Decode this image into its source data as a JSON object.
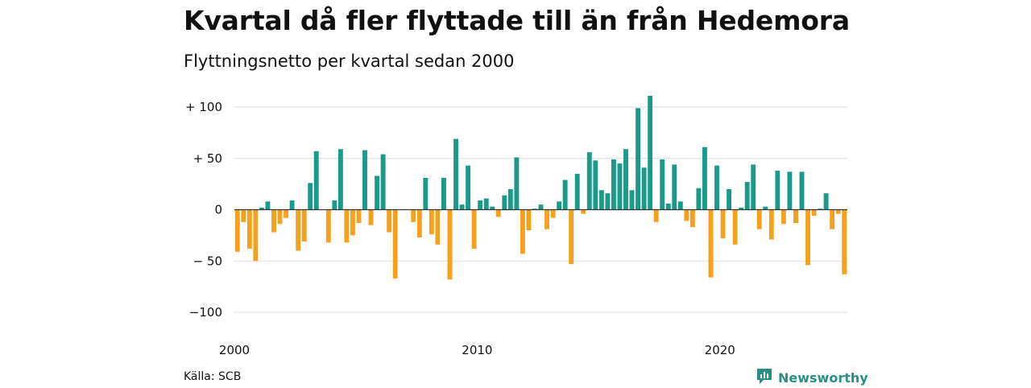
{
  "header": {
    "title": "Kvartal då fler flyttade till än från Hedemora",
    "subtitle": "Flyttningsnetto per kvartal sedan 2000"
  },
  "footer": {
    "source": "Källa: SCB",
    "brand": "Newsworthy",
    "brand_icon": "newsworthy-logo-icon"
  },
  "colors": {
    "positive": "#1a9a8a",
    "negative": "#f5a11d",
    "grid": "#dddddd",
    "zero_line": "#333333",
    "brand": "#2a8e86"
  },
  "chart_data": {
    "type": "bar",
    "title": "Kvartal då fler flyttade till än från Hedemora",
    "subtitle": "Flyttningsnetto per kvartal sedan 2000",
    "xlabel": "",
    "ylabel": "",
    "ylim": [
      -110,
      115
    ],
    "yticks": [
      100,
      50,
      0,
      -50,
      -100
    ],
    "ytick_labels": [
      "+ 100",
      "+  50",
      "0",
      "− 50",
      "−100"
    ],
    "xticks": [
      "2000",
      "2010",
      "2020"
    ],
    "grid": true,
    "legend": "none",
    "start": "2000 Q1",
    "frequency": "quarter",
    "values": [
      -41,
      -12,
      -38,
      -50,
      2,
      8,
      -22,
      -14,
      -8,
      9,
      -40,
      -31,
      26,
      57,
      0,
      -32,
      9,
      59,
      -32,
      -25,
      -13,
      58,
      -15,
      33,
      54,
      -22,
      -67,
      0,
      0,
      -12,
      -27,
      31,
      -24,
      -34,
      31,
      -68,
      69,
      5,
      43,
      -38,
      9,
      11,
      3,
      -7,
      14,
      20,
      51,
      -43,
      -20,
      1,
      5,
      -19,
      -8,
      8,
      29,
      -53,
      35,
      -4,
      56,
      48,
      19,
      16,
      49,
      45,
      59,
      19,
      99,
      41,
      111,
      -12,
      49,
      6,
      44,
      8,
      -11,
      -17,
      21,
      61,
      -66,
      43,
      -28,
      20,
      -34,
      2,
      27,
      44,
      -19,
      3,
      -29,
      38,
      -14,
      37,
      -13,
      37,
      -54,
      -6,
      1,
      16,
      -19,
      -4,
      -63
    ]
  }
}
